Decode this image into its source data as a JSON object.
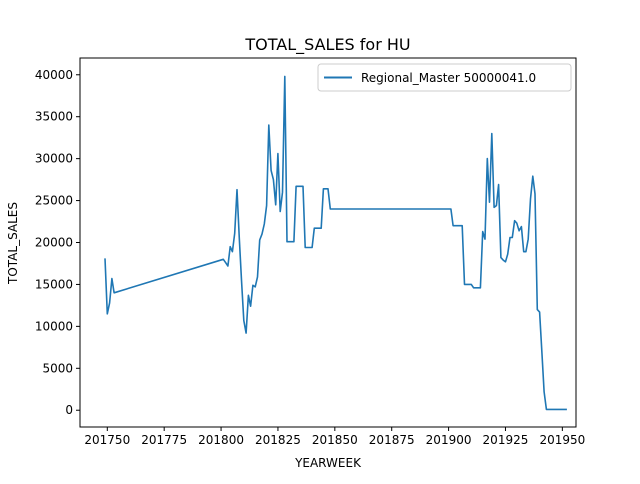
{
  "chart_data": {
    "type": "line",
    "title": "TOTAL_SALES for HU",
    "xlabel": "YEARWEEK",
    "ylabel": "TOTAL_SALES",
    "xlim": [
      201738,
      201956
    ],
    "ylim": [
      -2000,
      42000
    ],
    "xticks": [
      201750,
      201775,
      201800,
      201825,
      201850,
      201875,
      201900,
      201925,
      201950
    ],
    "yticks": [
      0,
      5000,
      10000,
      15000,
      20000,
      25000,
      30000,
      35000,
      40000
    ],
    "grid": false,
    "legend_position": "top-right",
    "series": [
      {
        "name": "Regional_Master 50000041.0",
        "color": "#1f77b4",
        "x": [
          201749,
          201750,
          201751,
          201752,
          201753,
          201801,
          201802,
          201803,
          201804,
          201805,
          201806,
          201807,
          201808,
          201809,
          201810,
          201811,
          201812,
          201813,
          201814,
          201815,
          201816,
          201817,
          201818,
          201819,
          201820,
          201821,
          201822,
          201823,
          201824,
          201825,
          201826,
          201827,
          201828,
          201829,
          201830,
          201831,
          201832,
          201833,
          201834,
          201835,
          201836,
          201837,
          201838,
          201839,
          201840,
          201841,
          201842,
          201843,
          201844,
          201845,
          201846,
          201847,
          201848,
          201849,
          201850,
          201851,
          201901,
          201902,
          201903,
          201904,
          201905,
          201906,
          201907,
          201908,
          201909,
          201910,
          201911,
          201912,
          201913,
          201914,
          201915,
          201916,
          201917,
          201918,
          201919,
          201920,
          201921,
          201922,
          201923,
          201924,
          201925,
          201926,
          201927,
          201928,
          201929,
          201930,
          201931,
          201932,
          201933,
          201934,
          201935,
          201936,
          201937,
          201938,
          201939,
          201940,
          201941,
          201942,
          201943,
          201944,
          201945,
          201946,
          201947,
          201948,
          201949,
          201950,
          201951,
          201952
        ],
        "values": [
          18100,
          11500,
          12800,
          15700,
          14000,
          18000,
          17600,
          17200,
          19500,
          18900,
          21100,
          26300,
          20500,
          15500,
          10700,
          9200,
          13700,
          12400,
          14900,
          14700,
          15900,
          20300,
          21000,
          22200,
          24400,
          34000,
          28600,
          27500,
          24500,
          30600,
          23700,
          26000,
          39800,
          20100,
          20100,
          20100,
          20100,
          26700,
          26700,
          26700,
          26700,
          19400,
          19400,
          19400,
          19400,
          21700,
          21700,
          21700,
          21700,
          26400,
          26400,
          26400,
          24000,
          24000,
          24000,
          24000,
          24000,
          22000,
          22000,
          22000,
          22000,
          22000,
          15000,
          15000,
          15000,
          15000,
          14600,
          14600,
          14600,
          14600,
          21300,
          20400,
          30000,
          24800,
          33000,
          24200,
          24400,
          26900,
          18200,
          17900,
          17700,
          18600,
          20600,
          20600,
          22600,
          22300,
          21400,
          21900,
          18900,
          18900,
          20400,
          25200,
          27900,
          25800,
          12000,
          11700,
          6900,
          2200,
          100,
          100,
          100,
          100,
          100,
          100,
          100,
          100,
          100,
          100
        ]
      }
    ]
  }
}
